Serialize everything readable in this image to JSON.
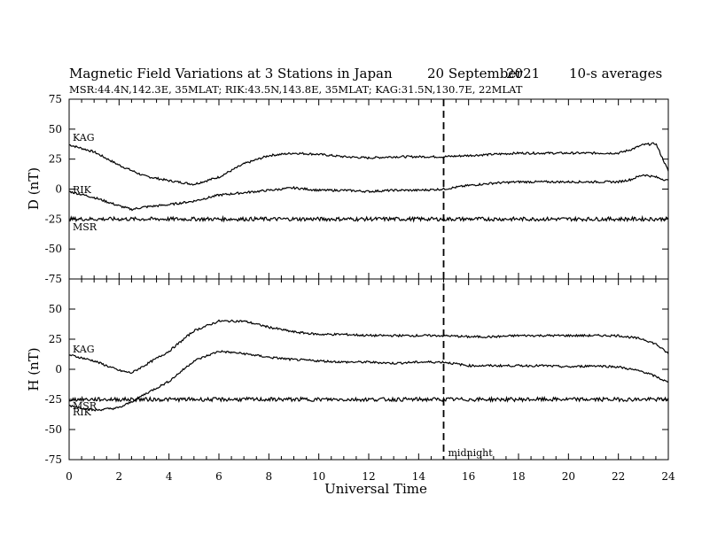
{
  "header": {
    "title": "Magnetic Field Variations at 3 Stations in Japan",
    "date_day": "20 September",
    "date_year": "2021",
    "averaging": "10-s averages",
    "stations_line": "MSR:44.4N,142.3E, 35MLAT;  RIK:43.5N,143.8E, 35MLAT;  KAG:31.5N,130.7E, 22MLAT"
  },
  "chart_data": [
    {
      "type": "line",
      "ylabel": "D (nT)",
      "xlabel": "",
      "xlim": [
        0,
        24
      ],
      "ylim": [
        -75,
        75
      ],
      "yticks": [
        "75",
        "50",
        "25",
        "0",
        "-25",
        "-50",
        "-75"
      ],
      "grid": false,
      "series": [
        {
          "name": "KAG",
          "x": [
            0,
            1,
            2,
            3,
            4,
            5,
            6,
            7,
            8,
            9,
            10,
            11,
            12,
            13,
            14,
            15,
            16,
            17,
            18,
            19,
            20,
            21,
            22,
            22.5,
            23,
            23.5,
            24
          ],
          "values": [
            37,
            31,
            20,
            11,
            7,
            4,
            10,
            21,
            28,
            30,
            29,
            27,
            26,
            27,
            27,
            27,
            28,
            29,
            30,
            30,
            30,
            30,
            30,
            33,
            37,
            38,
            15
          ]
        },
        {
          "name": "RIK",
          "x": [
            0,
            1,
            2,
            2.5,
            3,
            4,
            5,
            6,
            7,
            8,
            9,
            10,
            11,
            12,
            13,
            14,
            15,
            16,
            17,
            18,
            19,
            20,
            21,
            22,
            22.5,
            23,
            23.5,
            24
          ],
          "values": [
            -2,
            -7,
            -14,
            -17,
            -15,
            -13,
            -10,
            -5,
            -3,
            -1,
            1,
            -1,
            -1,
            -2,
            -1,
            -1,
            0,
            3,
            5,
            6,
            6,
            6,
            6,
            6,
            8,
            12,
            10,
            7
          ]
        },
        {
          "name": "MSR",
          "x": [
            0,
            24
          ],
          "values": [
            -25,
            -25
          ]
        }
      ],
      "annotations": []
    },
    {
      "type": "line",
      "ylabel": "H (nT)",
      "xlabel": "Universal Time",
      "xlim": [
        0,
        24
      ],
      "ylim": [
        -75,
        75
      ],
      "xticks": [
        "0",
        "2",
        "4",
        "6",
        "8",
        "10",
        "12",
        "14",
        "16",
        "18",
        "20",
        "22",
        "24"
      ],
      "yticks": [
        "75",
        "50",
        "25",
        "0",
        "-25",
        "-50",
        "-75"
      ],
      "grid": false,
      "series": [
        {
          "name": "KAG",
          "x": [
            0,
            1,
            2,
            2.5,
            3,
            4,
            5,
            6,
            7,
            8,
            9,
            10,
            11,
            12,
            13,
            14,
            15,
            16,
            17,
            18,
            19,
            20,
            21,
            22,
            23,
            23.5,
            24
          ],
          "values": [
            12,
            7,
            -1,
            -3,
            3,
            15,
            32,
            40,
            40,
            35,
            31,
            29,
            29,
            28,
            28,
            28,
            28,
            27,
            27,
            28,
            28,
            28,
            28,
            28,
            25,
            21,
            13
          ]
        },
        {
          "name": "RIK",
          "x": [
            0,
            1,
            2,
            2.5,
            3,
            4,
            5,
            6,
            7,
            8,
            9,
            10,
            11,
            12,
            13,
            14,
            15,
            16,
            17,
            18,
            19,
            20,
            21,
            22,
            23,
            23.5,
            24
          ],
          "values": [
            -30,
            -34,
            -32,
            -27,
            -21,
            -10,
            7,
            15,
            13,
            10,
            8,
            7,
            6,
            6,
            5,
            6,
            6,
            3,
            3,
            3,
            3,
            2,
            3,
            2,
            -2,
            -6,
            -11
          ]
        },
        {
          "name": "MSR",
          "x": [
            0,
            24
          ],
          "values": [
            -25,
            -25
          ]
        }
      ],
      "annotations": [
        "midnight"
      ]
    }
  ],
  "midnight_ut": 15,
  "colors": {
    "line": "#000000",
    "background": "#ffffff"
  }
}
